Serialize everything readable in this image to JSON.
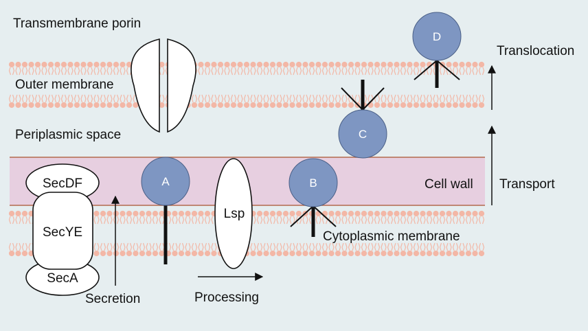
{
  "labels": {
    "porin": "Transmembrane porin",
    "outer_membrane": "Outer membrane",
    "periplasmic_space": "Periplasmic space",
    "cell_wall": "Cell wall",
    "cytoplasmic_membrane": "Cytoplasmic membrane",
    "translocation": "Translocation",
    "transport": "Transport",
    "secretion": "Secretion",
    "processing": "Processing"
  },
  "proteins": {
    "secdf": "SecDF",
    "secye": "SecYE",
    "seca": "SecA",
    "lsp": "Lsp"
  },
  "lipoproteins": {
    "a": "A",
    "b": "B",
    "c": "C",
    "d": "D"
  },
  "colors": {
    "background": "#e6eef0",
    "lipid": "#f3b7a6",
    "cell_wall": "#e7cfe0",
    "cell_wall_border": "#b46a4c",
    "lipoprotein_circle": "#7e96c2"
  }
}
